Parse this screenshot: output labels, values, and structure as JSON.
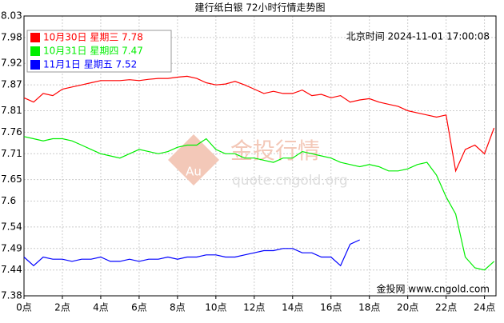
{
  "chart_data": {
    "type": "line",
    "title": "建行纸白银 72小时行情走势图",
    "subtitle": "北京时间 2024-11-01 17:00:08",
    "annotations": [
      "金投行情",
      "Au",
      "quote.cngold.org",
      "金投网 www.cngold.com"
    ],
    "x": [
      0,
      0.5,
      1,
      1.5,
      2,
      2.5,
      3,
      3.5,
      4,
      4.5,
      5,
      5.5,
      6,
      6.5,
      7,
      7.5,
      8,
      8.5,
      9,
      9.5,
      10,
      10.5,
      11,
      11.5,
      12,
      12.5,
      13,
      13.5,
      14,
      14.5,
      15,
      15.5,
      16,
      16.5,
      17,
      17.5,
      18,
      18.5,
      19,
      19.5,
      20,
      20.5,
      21,
      21.5,
      22,
      22.5,
      23,
      23.5,
      24,
      24.5
    ],
    "series": [
      {
        "name": "10月30日 星期三 7.78",
        "color": "#ff0000",
        "values": [
          7.84,
          7.83,
          7.85,
          7.845,
          7.86,
          7.865,
          7.87,
          7.875,
          7.88,
          7.88,
          7.88,
          7.882,
          7.88,
          7.883,
          7.885,
          7.885,
          7.888,
          7.89,
          7.885,
          7.875,
          7.87,
          7.872,
          7.878,
          7.87,
          7.86,
          7.85,
          7.855,
          7.85,
          7.85,
          7.858,
          7.845,
          7.848,
          7.84,
          7.845,
          7.83,
          7.835,
          7.838,
          7.83,
          7.825,
          7.82,
          7.81,
          7.805,
          7.8,
          7.795,
          7.8,
          7.67,
          7.72,
          7.73,
          7.71,
          7.77
        ]
      },
      {
        "name": "10月31日 星期四 7.47",
        "color": "#00ee00",
        "values": [
          7.75,
          7.745,
          7.74,
          7.745,
          7.745,
          7.74,
          7.73,
          7.72,
          7.71,
          7.705,
          7.7,
          7.71,
          7.72,
          7.715,
          7.71,
          7.715,
          7.725,
          7.73,
          7.73,
          7.745,
          7.72,
          7.71,
          7.71,
          7.7,
          7.7,
          7.695,
          7.69,
          7.7,
          7.7,
          7.715,
          7.71,
          7.705,
          7.7,
          7.69,
          7.685,
          7.68,
          7.685,
          7.68,
          7.67,
          7.67,
          7.675,
          7.685,
          7.69,
          7.66,
          7.61,
          7.57,
          7.47,
          7.445,
          7.44,
          7.46
        ]
      },
      {
        "name": "11月1日 星期五 7.52",
        "color": "#0000ff",
        "values": [
          7.47,
          7.45,
          7.47,
          7.465,
          7.465,
          7.46,
          7.465,
          7.465,
          7.47,
          7.46,
          7.46,
          7.465,
          7.46,
          7.465,
          7.465,
          7.47,
          7.465,
          7.47,
          7.47,
          7.475,
          7.475,
          7.47,
          7.47,
          7.475,
          7.48,
          7.485,
          7.485,
          7.49,
          7.49,
          7.48,
          7.48,
          7.47,
          7.47,
          7.45,
          7.5,
          7.51,
          null,
          null,
          null,
          null,
          null,
          null,
          null,
          null,
          null,
          null,
          null,
          null,
          null,
          null
        ]
      }
    ],
    "xlim": [
      0,
      24.6
    ],
    "xticks": [
      {
        "value": 0,
        "label": "0点"
      },
      {
        "value": 2,
        "label": "2点"
      },
      {
        "value": 4,
        "label": "4点"
      },
      {
        "value": 6,
        "label": "6点"
      },
      {
        "value": 8,
        "label": "8点"
      },
      {
        "value": 10,
        "label": "10点"
      },
      {
        "value": 12,
        "label": "12点"
      },
      {
        "value": 14,
        "label": "14点"
      },
      {
        "value": 16,
        "label": "16点"
      },
      {
        "value": 18,
        "label": "18点"
      },
      {
        "value": 20,
        "label": "20点"
      },
      {
        "value": 22,
        "label": "22点"
      },
      {
        "value": 24,
        "label": "24点"
      }
    ],
    "ylim": [
      7.38,
      8.03
    ],
    "yticks": [
      7.38,
      7.44,
      7.49,
      7.54,
      7.6,
      7.65,
      7.71,
      7.76,
      7.81,
      7.87,
      7.92,
      7.98,
      8.03
    ],
    "grid": true,
    "legend": "top-left"
  }
}
